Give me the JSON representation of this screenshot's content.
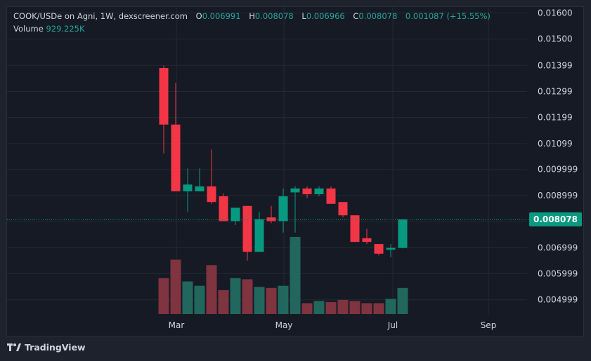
{
  "legend": {
    "symbol": "COOK/USDe on Agni, 1W, dexscreener.com",
    "open_label": "O",
    "open_value": "0.006991",
    "high_label": "H",
    "high_value": "0.008078",
    "low_label": "L",
    "low_value": "0.006966",
    "close_label": "C",
    "close_value": "0.008078",
    "change_value": "0.001087 (+15.55%)",
    "volume_label": "Volume",
    "volume_value": "929.225K"
  },
  "price_badge": "0.008078",
  "branding": "TradingView",
  "colors": {
    "up": "#089981",
    "down": "#f23645",
    "up_volume": "#22675e",
    "down_volume": "#7f3440",
    "grid": "#242832",
    "axis_text": "#d1d4dc"
  },
  "chart_data": {
    "type": "candlestick",
    "interval": "1W",
    "x_ticks": [
      "Mar",
      "May",
      "Jul",
      "Sep"
    ],
    "y_ticks": [
      "0.01600",
      "0.01500",
      "0.01399",
      "0.01299",
      "0.01199",
      "0.01099",
      "0.009999",
      "0.008999",
      "0.007999",
      "0.006999",
      "0.005999",
      "0.004999"
    ],
    "y_tick_values": [
      0.016,
      0.015,
      0.01399,
      0.01299,
      0.01199,
      0.01099,
      0.009999,
      0.008999,
      0.007999,
      0.006999,
      0.005999,
      0.004999
    ],
    "ylim": [
      0.0043,
      0.0166
    ],
    "last_price": 0.008078,
    "candles": [
      {
        "o": 0.01389,
        "h": 0.01399,
        "l": 0.01061,
        "c": 0.01172
      },
      {
        "o": 0.01172,
        "h": 0.01332,
        "l": 0.00916,
        "c": 0.00916
      },
      {
        "o": 0.00916,
        "h": 0.01004,
        "l": 0.00838,
        "c": 0.00942
      },
      {
        "o": 0.00916,
        "h": 0.01004,
        "l": 0.00916,
        "c": 0.00935
      },
      {
        "o": 0.00935,
        "h": 0.01076,
        "l": 0.00868,
        "c": 0.00875
      },
      {
        "o": 0.00897,
        "h": 0.00908,
        "l": 0.00802,
        "c": 0.00802
      },
      {
        "o": 0.00802,
        "h": 0.00853,
        "l": 0.00787,
        "c": 0.00853
      },
      {
        "o": 0.0086,
        "h": 0.0086,
        "l": 0.0065,
        "c": 0.00684
      },
      {
        "o": 0.00684,
        "h": 0.00838,
        "l": 0.00684,
        "c": 0.00809
      },
      {
        "o": 0.00816,
        "h": 0.0086,
        "l": 0.00794,
        "c": 0.00802
      },
      {
        "o": 0.00802,
        "h": 0.00927,
        "l": 0.00758,
        "c": 0.00897
      },
      {
        "o": 0.00912,
        "h": 0.00935,
        "l": 0.00758,
        "c": 0.00927
      },
      {
        "o": 0.00927,
        "h": 0.00935,
        "l": 0.0089,
        "c": 0.00905
      },
      {
        "o": 0.00905,
        "h": 0.00935,
        "l": 0.00897,
        "c": 0.00927
      },
      {
        "o": 0.00927,
        "h": 0.00935,
        "l": 0.00868,
        "c": 0.00868
      },
      {
        "o": 0.00875,
        "h": 0.00875,
        "l": 0.00816,
        "c": 0.00824
      },
      {
        "o": 0.00824,
        "h": 0.00824,
        "l": 0.00722,
        "c": 0.00722
      },
      {
        "o": 0.00736,
        "h": 0.00772,
        "l": 0.00714,
        "c": 0.00722
      },
      {
        "o": 0.00714,
        "h": 0.00714,
        "l": 0.0067,
        "c": 0.00677
      },
      {
        "o": 0.00692,
        "h": 0.00714,
        "l": 0.00663,
        "c": 0.00699
      },
      {
        "o": 0.00699,
        "h": 0.00808,
        "l": 0.00697,
        "c": 0.00808
      }
    ],
    "volume_levels": [
      0.33,
      0.5,
      0.3,
      0.26,
      0.45,
      0.22,
      0.33,
      0.32,
      0.25,
      0.24,
      0.26,
      0.71,
      0.1,
      0.12,
      0.11,
      0.13,
      0.12,
      0.1,
      0.1,
      0.14,
      0.24
    ]
  }
}
